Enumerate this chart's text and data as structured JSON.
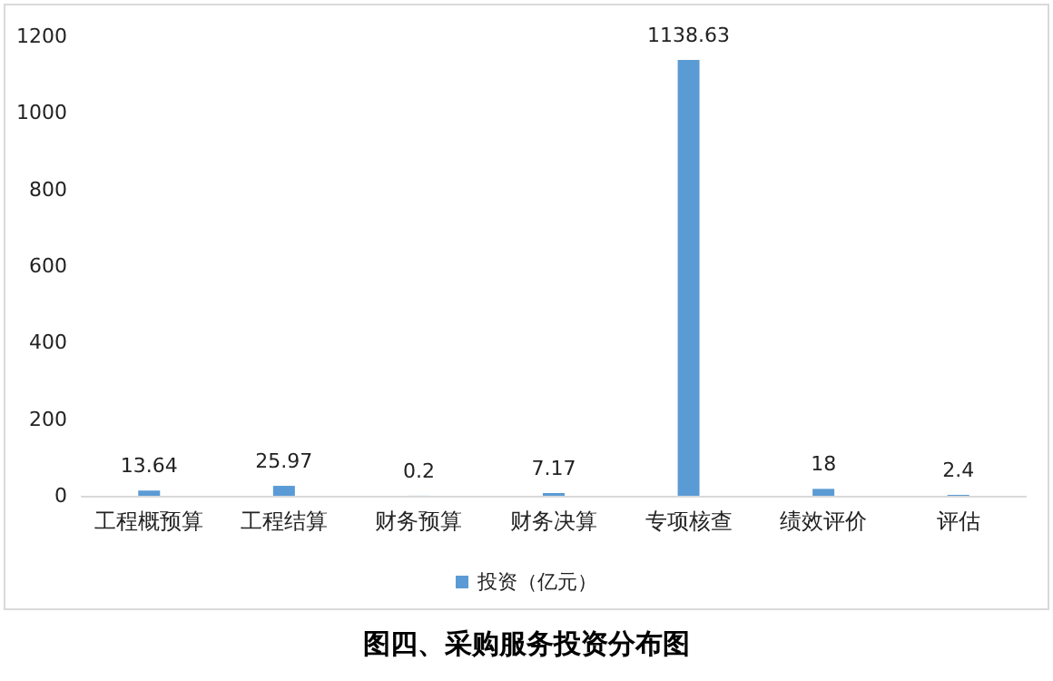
{
  "chart_data": {
    "type": "bar",
    "title": "图四、采购服务投资分布图",
    "categories": [
      "工程概预算",
      "工程结算",
      "财务预算",
      "财务决算",
      "专项核查",
      "绩效评价",
      "评估"
    ],
    "series": [
      {
        "name": "投资（亿元）",
        "color": "#5b9bd5",
        "values": [
          13.64,
          25.97,
          0.2,
          7.17,
          1138.63,
          18,
          2.4
        ]
      }
    ],
    "ylim": [
      0,
      1200
    ],
    "yticks": [
      0,
      200,
      400,
      600,
      800,
      1000,
      1200
    ],
    "grid": false,
    "legend": "bottom",
    "data_labels": true
  }
}
